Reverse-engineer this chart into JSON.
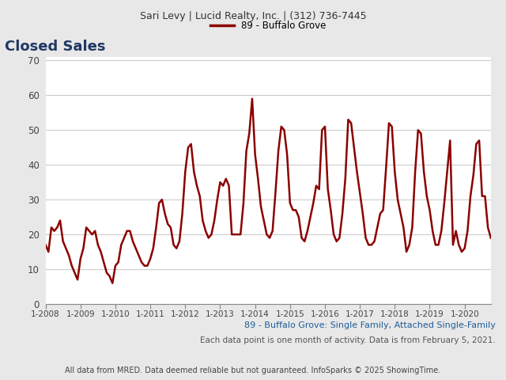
{
  "header_text": "Sari Levy | Lucid Realty, Inc. | (312) 736-7445",
  "title": "Closed Sales",
  "title_color": "#1F3864",
  "legend_label": "89 - Buffalo Grove",
  "legend_color": "#8B0000",
  "subtitle_blue": "89 - Buffalo Grove: Single Family, Attached Single-Family",
  "subtitle_note": "Each data point is one month of activity. Data is from February 5, 2021.",
  "footer": "All data from MRED. Data deemed reliable but not guaranteed. InfoSparks © 2025 ShowingTime.",
  "ylabel_max": 70,
  "ylabel_min": 0,
  "yticks": [
    0,
    10,
    20,
    30,
    40,
    50,
    60,
    70
  ],
  "line_color": "#8B0000",
  "line_width": 1.8,
  "figure_bg": "#e8e8e8",
  "plot_bg": "#ffffff",
  "values": [
    17,
    15,
    22,
    21,
    22,
    24,
    18,
    16,
    14,
    11,
    9,
    7,
    13,
    16,
    22,
    21,
    20,
    21,
    17,
    15,
    12,
    9,
    8,
    6,
    11,
    12,
    17,
    19,
    21,
    21,
    18,
    16,
    14,
    12,
    11,
    11,
    13,
    16,
    22,
    29,
    30,
    26,
    23,
    22,
    17,
    16,
    18,
    26,
    38,
    45,
    46,
    38,
    34,
    31,
    24,
    21,
    19,
    20,
    24,
    30,
    35,
    34,
    36,
    34,
    20,
    20,
    20,
    20,
    29,
    44,
    49,
    59,
    43,
    36,
    28,
    24,
    20,
    19,
    21,
    32,
    44,
    51,
    50,
    43,
    29,
    27,
    27,
    25,
    19,
    18,
    21,
    25,
    29,
    34,
    33,
    50,
    51,
    33,
    27,
    20,
    18,
    19,
    26,
    36,
    53,
    52,
    45,
    38,
    32,
    26,
    19,
    17,
    17,
    18,
    22,
    26,
    27,
    39,
    52,
    51,
    38,
    30,
    26,
    22,
    15,
    17,
    22,
    38,
    50,
    49,
    38,
    31,
    27,
    21,
    17,
    17,
    21,
    29,
    38,
    47,
    17,
    21,
    17,
    15,
    16,
    21,
    31,
    37,
    46,
    47,
    31,
    31,
    22,
    19
  ]
}
